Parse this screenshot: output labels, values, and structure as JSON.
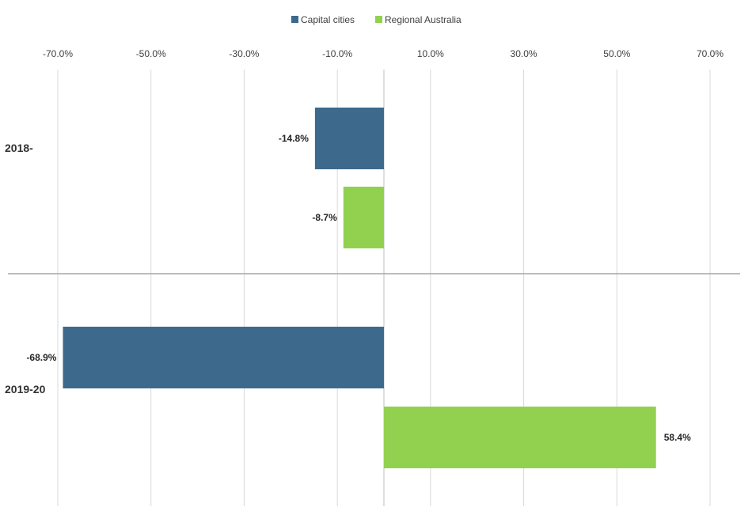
{
  "chart_data": {
    "type": "bar",
    "orientation": "horizontal",
    "categories": [
      "2018-",
      "2019-20"
    ],
    "series": [
      {
        "name": "Capital cities",
        "color": "#3d6a8c",
        "values": [
          -14.8,
          -68.9
        ],
        "labels": [
          "-14.8%",
          "-68.9%"
        ]
      },
      {
        "name": "Regional Australia",
        "color": "#92d050",
        "values": [
          -8.7,
          58.4
        ],
        "labels": [
          "-8.7%",
          "58.4%"
        ]
      }
    ],
    "xlim": [
      -70,
      70
    ],
    "ticks": [
      -70,
      -50,
      -30,
      -10,
      10,
      30,
      50,
      70
    ],
    "tick_labels": [
      "-70.0%",
      "-50.0%",
      "-30.0%",
      "-10.0%",
      "10.0%",
      "30.0%",
      "50.0%",
      "70.0%"
    ],
    "legend_position": "top-center",
    "grid": true
  }
}
